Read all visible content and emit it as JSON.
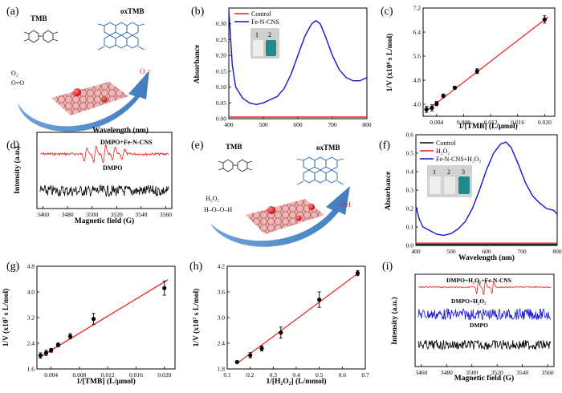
{
  "panels": {
    "a": {
      "label": "(a)",
      "reactant": "TMB",
      "product": "oxTMB",
      "oxidant": "O₂",
      "oxidant_struct": "O=O",
      "radical": "O₂⁻"
    },
    "b": {
      "label": "(b)",
      "legend": [
        "Control",
        "Fe-N-CNS"
      ],
      "inset": [
        "1",
        "2"
      ]
    },
    "c": {
      "label": "(c)"
    },
    "d": {
      "label": "(d)",
      "trace_top": "DMPO+Fe-N-CNS",
      "trace_bottom": "DMPO"
    },
    "e": {
      "label": "(e)",
      "reactant": "TMB",
      "product": "oxTMB",
      "oxidant": "H₂O₂",
      "oxidant_struct": "H–O–O–H",
      "radical": "OH·"
    },
    "f": {
      "label": "(f)",
      "legend": [
        "Control",
        "H₂O₂",
        "Fe-N-CNS+H₂O₂"
      ],
      "inset": [
        "1",
        "2",
        "3"
      ]
    },
    "g": {
      "label": "(g)"
    },
    "h": {
      "label": "(h)"
    },
    "i": {
      "label": "(i)",
      "trace_top": "DMPO+H₂O₂+Fe-N-CNS",
      "trace_mid": "DMPO+H₂O₂",
      "trace_bottom": "DMPO"
    }
  },
  "colors": {
    "red": "#ee1c1c",
    "blue": "#1414d2",
    "black": "#000000",
    "arrow": "#3f82c8",
    "sheet": "#f4a6a6"
  },
  "chart_data": [
    {
      "panel": "b",
      "type": "line",
      "xlabel": "Wavelength (nm)",
      "ylabel": "Absorbance",
      "xlim": [
        400,
        800
      ],
      "ylim": [
        0,
        0.35
      ],
      "xticks": [
        400,
        500,
        600,
        700,
        800
      ],
      "yticks": [
        0.0,
        0.05,
        0.1,
        0.15,
        0.2,
        0.25,
        0.3
      ],
      "ytick_labels": [
        "0.00",
        "0.05",
        "0.10",
        "0.15",
        "0.20",
        "0.25",
        "0.30"
      ],
      "series": [
        {
          "name": "Control",
          "color": "#ee1c1c",
          "x": [
            400,
            800
          ],
          "y": [
            0.005,
            0.005
          ]
        },
        {
          "name": "Fe-N-CNS",
          "color": "#1414d2",
          "x": [
            400,
            410,
            420,
            440,
            460,
            480,
            500,
            520,
            540,
            560,
            580,
            600,
            620,
            640,
            652,
            665,
            680,
            700,
            720,
            740,
            760,
            780,
            800
          ],
          "y": [
            0.345,
            0.17,
            0.1,
            0.065,
            0.05,
            0.045,
            0.05,
            0.06,
            0.07,
            0.095,
            0.14,
            0.2,
            0.26,
            0.3,
            0.31,
            0.3,
            0.26,
            0.2,
            0.155,
            0.13,
            0.12,
            0.12,
            0.13
          ]
        }
      ]
    },
    {
      "panel": "c",
      "type": "scatter",
      "xlabel": "1/[TMB] (L/μmol)",
      "ylabel": "1/V (x10⁸ s L/mol)",
      "xlim": [
        0.002,
        0.0215
      ],
      "ylim": [
        3.6,
        7.2
      ],
      "xticks": [
        0.004,
        0.008,
        0.012,
        0.016,
        0.02
      ],
      "xtick_labels": [
        "0.004",
        "0.008",
        "0.012",
        "0.016",
        "0.020"
      ],
      "yticks": [
        4.0,
        4.8,
        5.6,
        6.4,
        7.2
      ],
      "ytick_labels": [
        "4.0",
        "4.8",
        "5.6",
        "6.4",
        "7.2"
      ],
      "x": [
        0.0025,
        0.0033,
        0.004,
        0.005,
        0.0067,
        0.01,
        0.02
      ],
      "y": [
        3.83,
        3.88,
        4.02,
        4.28,
        4.55,
        5.1,
        6.82
      ],
      "err": [
        0.1,
        0.1,
        0.07,
        0.06,
        0.05,
        0.08,
        0.12
      ],
      "fit": {
        "x": [
          0.0025,
          0.0205
        ],
        "y": [
          3.78,
          6.9
        ]
      }
    },
    {
      "panel": "d",
      "type": "line",
      "xlabel": "Magnetic field (G)",
      "ylabel": "Intensity (a.u.)",
      "xlim": [
        3455,
        3565
      ],
      "xticks": [
        3460,
        3480,
        3500,
        3520,
        3540,
        3560
      ]
    },
    {
      "panel": "f",
      "type": "line",
      "xlabel": "Wavelength (nm)",
      "ylabel": "Absorbance",
      "xlim": [
        400,
        800
      ],
      "ylim": [
        0,
        0.6
      ],
      "xticks": [
        400,
        500,
        600,
        700,
        800
      ],
      "yticks": [
        0.0,
        0.1,
        0.2,
        0.3,
        0.4,
        0.5,
        0.6
      ],
      "ytick_labels": [
        "0.0",
        "0.1",
        "0.2",
        "0.3",
        "0.4",
        "0.5",
        "0.6"
      ],
      "series": [
        {
          "name": "Control",
          "color": "#000000",
          "x": [
            400,
            800
          ],
          "y": [
            0.005,
            0.005
          ]
        },
        {
          "name": "H₂O₂",
          "color": "#ee1c1c",
          "x": [
            400,
            800
          ],
          "y": [
            0.012,
            0.012
          ]
        },
        {
          "name": "Fe-N-CNS+H₂O₂",
          "color": "#1414d2",
          "x": [
            400,
            410,
            420,
            440,
            460,
            480,
            500,
            520,
            540,
            560,
            580,
            600,
            620,
            640,
            655,
            670,
            690,
            710,
            730,
            750,
            770,
            790,
            800
          ],
          "y": [
            0.21,
            0.14,
            0.1,
            0.08,
            0.06,
            0.055,
            0.065,
            0.09,
            0.13,
            0.2,
            0.3,
            0.41,
            0.5,
            0.55,
            0.56,
            0.53,
            0.44,
            0.34,
            0.27,
            0.23,
            0.2,
            0.19,
            0.17
          ]
        }
      ]
    },
    {
      "panel": "g",
      "type": "scatter",
      "xlabel": "1/[TMB] (L/μmol)",
      "ylabel": "1/V (x10⁷ s L/mol)",
      "xlim": [
        0.002,
        0.0215
      ],
      "ylim": [
        1.6,
        4.8
      ],
      "xticks": [
        0.004,
        0.008,
        0.012,
        0.016,
        0.02
      ],
      "xtick_labels": [
        "0.004",
        "0.008",
        "0.012",
        "0.016",
        "0.020"
      ],
      "yticks": [
        1.6,
        2.4,
        3.2,
        4.0,
        4.8
      ],
      "ytick_labels": [
        "1.6",
        "2.4",
        "3.2",
        "4.0",
        "4.8"
      ],
      "x": [
        0.0025,
        0.0033,
        0.004,
        0.005,
        0.0067,
        0.01,
        0.02
      ],
      "y": [
        2.02,
        2.1,
        2.18,
        2.35,
        2.62,
        3.16,
        4.12
      ],
      "err": [
        0.08,
        0.08,
        0.06,
        0.06,
        0.08,
        0.17,
        0.22
      ],
      "fit": {
        "x": [
          0.0025,
          0.0205
        ],
        "y": [
          1.98,
          4.38
        ]
      }
    },
    {
      "panel": "h",
      "type": "scatter",
      "xlabel": "1/[H₂O₂] (L/mmol)",
      "ylabel": "1/V (x10⁷ s L/mol)",
      "xlim": [
        0.1,
        0.7
      ],
      "ylim": [
        1.8,
        4.2
      ],
      "xticks": [
        0.1,
        0.2,
        0.3,
        0.4,
        0.5,
        0.6,
        0.7
      ],
      "xtick_labels": [
        "0.1",
        "0.2",
        "0.3",
        "0.4",
        "0.5",
        "0.6",
        "0.7"
      ],
      "yticks": [
        1.8,
        2.4,
        3.0,
        3.6,
        4.2
      ],
      "ytick_labels": [
        "1.8",
        "2.4",
        "3.0",
        "3.6",
        "4.2"
      ],
      "x": [
        0.143,
        0.2,
        0.25,
        0.333,
        0.5,
        0.667
      ],
      "y": [
        1.96,
        2.12,
        2.28,
        2.65,
        3.42,
        4.04
      ],
      "err": [
        0.03,
        0.06,
        0.06,
        0.13,
        0.18,
        0.06
      ],
      "fit": {
        "x": [
          0.143,
          0.667
        ],
        "y": [
          1.93,
          4.03
        ]
      }
    },
    {
      "panel": "i",
      "type": "line",
      "xlabel": "Magnetic field (G)",
      "ylabel": "Intensity (a.u.)",
      "xlim": [
        3455,
        3565
      ],
      "xticks": [
        3460,
        3480,
        3500,
        3520,
        3540,
        3560
      ]
    }
  ]
}
